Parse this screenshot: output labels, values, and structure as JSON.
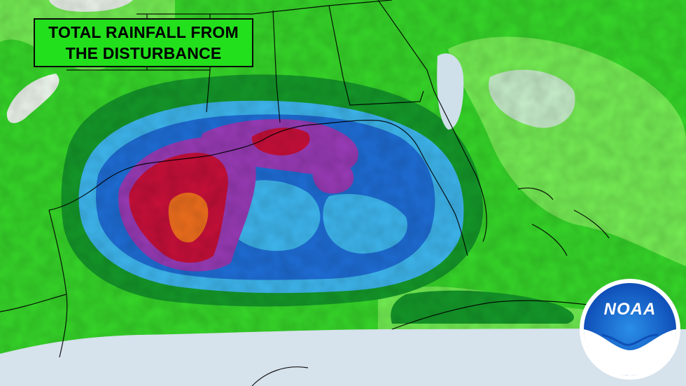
{
  "title": {
    "line1": "TOTAL RAINFALL FROM",
    "line2": "THE DISTURBANCE"
  },
  "logo": {
    "text": "NOAA"
  },
  "colors": {
    "land_green": "#37d82a",
    "light_green": "#7df25a",
    "dark_green": "#159a2a",
    "light_blue": "#3fb8f0",
    "mid_blue": "#1f6fd8",
    "purple": "#9a3cb8",
    "red": "#c8103a",
    "orange": "#f0701e",
    "gulf_gray": "#d6e2ec",
    "noaa_blue": "#1a5fc8"
  }
}
